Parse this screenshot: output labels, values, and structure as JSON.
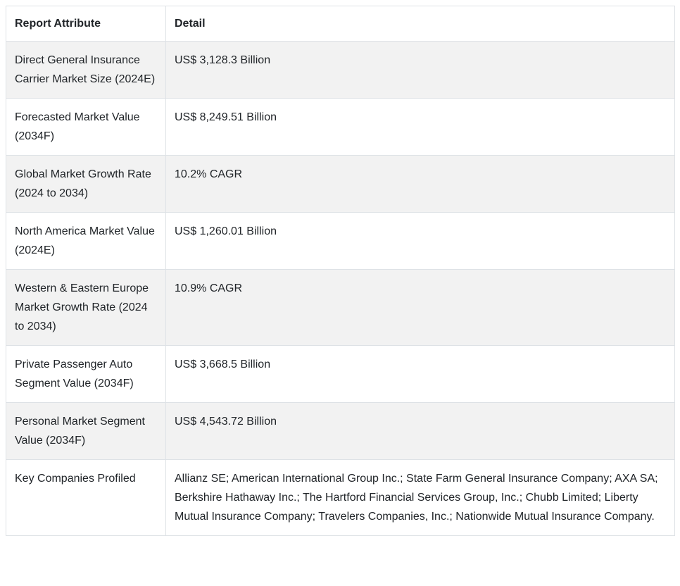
{
  "table": {
    "columns": [
      {
        "label": "Report Attribute"
      },
      {
        "label": "Detail"
      }
    ],
    "rows": [
      {
        "attribute": "Direct General Insurance Carrier Market Size (2024E)",
        "detail": "US$ 3,128.3 Billion"
      },
      {
        "attribute": "Forecasted Market Value (2034F)",
        "detail": "US$ 8,249.51 Billion"
      },
      {
        "attribute": "Global Market Growth Rate (2024 to 2034)",
        "detail": "10.2% CAGR"
      },
      {
        "attribute": "North America Market Value (2024E)",
        "detail": "US$ 1,260.01 Billion"
      },
      {
        "attribute": "Western & Eastern Europe Market Growth Rate (2024 to 2034)",
        "detail": "10.9% CAGR"
      },
      {
        "attribute": "Private Passenger Auto Segment Value (2034F)",
        "detail": "US$ 3,668.5 Billion"
      },
      {
        "attribute": "Personal Market Segment Value (2034F)",
        "detail": "US$ 4,543.72 Billion"
      },
      {
        "attribute": "Key Companies Profiled",
        "detail": "Allianz SE; American International Group Inc.; State Farm General Insurance Company; AXA SA; Berkshire Hathaway Inc.; The Hartford Financial Services Group, Inc.; Chubb Limited; Liberty Mutual Insurance Company; Travelers Companies, Inc.; Nationwide Mutual Insurance Company."
      }
    ],
    "colors": {
      "stripe_row_bg": "#f2f2f2",
      "plain_row_bg": "#ffffff",
      "border": "#dee2e6",
      "text": "#212529"
    }
  }
}
